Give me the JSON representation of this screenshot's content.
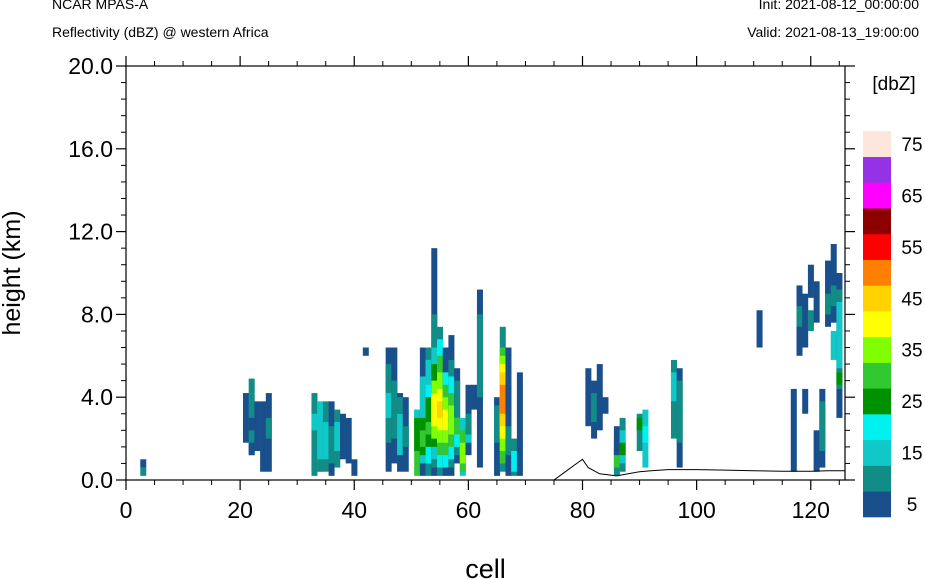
{
  "header": {
    "model": "NCAR MPAS-A",
    "field": "Reflectivity (dBZ) @ western Africa",
    "init": "Init: 2021-08-12_00:00:00",
    "valid": "Valid: 2021-08-13_19:00:00"
  },
  "chart_data": {
    "type": "heatmap",
    "title": "Reflectivity (dBZ) @ western Africa",
    "xlabel": "cell",
    "ylabel": "height (km)",
    "xlim": [
      0,
      126
    ],
    "ylim": [
      0,
      20
    ],
    "xticks": [
      0,
      20,
      40,
      60,
      80,
      100,
      120
    ],
    "yticks": [
      "0.0",
      "4.0",
      "8.0",
      "12.0",
      "16.0",
      "20.0"
    ],
    "colorbar": {
      "unit": "[dbZ]",
      "levels": [
        5,
        10,
        15,
        20,
        25,
        30,
        35,
        40,
        45,
        50,
        55,
        60,
        65,
        70,
        75
      ],
      "labels": [
        "5",
        "15",
        "25",
        "35",
        "45",
        "55",
        "65",
        "75"
      ],
      "colors": [
        "#19508c",
        "#128c86",
        "#10c8c8",
        "#00f0f0",
        "#009100",
        "#32c832",
        "#80ff00",
        "#ffff00",
        "#ffd200",
        "#ff8000",
        "#ff0000",
        "#8c0000",
        "#ff00ff",
        "#9632e6",
        "#ffe6dc"
      ]
    },
    "terrain": [
      [
        0,
        0
      ],
      [
        75,
        0
      ],
      [
        77,
        0.4
      ],
      [
        79,
        0.8
      ],
      [
        80,
        1.0
      ],
      [
        81,
        0.6
      ],
      [
        83,
        0.3
      ],
      [
        86,
        0.2
      ],
      [
        88,
        0.3
      ],
      [
        90,
        0.4
      ],
      [
        92,
        0.45
      ],
      [
        95,
        0.5
      ],
      [
        100,
        0.5
      ],
      [
        105,
        0.48
      ],
      [
        110,
        0.45
      ],
      [
        115,
        0.42
      ],
      [
        120,
        0.42
      ],
      [
        123,
        0.45
      ],
      [
        126,
        0.45
      ]
    ],
    "columns": [
      {
        "x": 3,
        "cells": [
          [
            0.2,
            0.6,
            1
          ],
          [
            0.6,
            1.0,
            0
          ]
        ]
      },
      {
        "x": 21,
        "cells": [
          [
            1.8,
            4.2,
            0
          ]
        ]
      },
      {
        "x": 22,
        "cells": [
          [
            1.2,
            4.2,
            1
          ],
          [
            4.2,
            4.9,
            1
          ],
          [
            1.2,
            1.8,
            0
          ],
          [
            2.4,
            3.0,
            0
          ]
        ]
      },
      {
        "x": 23,
        "cells": [
          [
            1.4,
            3.8,
            0
          ]
        ]
      },
      {
        "x": 24,
        "cells": [
          [
            0.4,
            3.8,
            0
          ]
        ]
      },
      {
        "x": 25,
        "cells": [
          [
            0.4,
            4.2,
            0
          ],
          [
            2.0,
            3.0,
            1
          ]
        ]
      },
      {
        "x": 33,
        "cells": [
          [
            0.2,
            4.2,
            1
          ],
          [
            2.4,
            3.2,
            2
          ]
        ]
      },
      {
        "x": 34,
        "cells": [
          [
            0.4,
            3.8,
            2
          ],
          [
            0.4,
            1.0,
            1
          ]
        ]
      },
      {
        "x": 35,
        "cells": [
          [
            0.4,
            3.8,
            1
          ],
          [
            1.0,
            2.8,
            2
          ]
        ]
      },
      {
        "x": 36,
        "cells": [
          [
            0.2,
            3.8,
            0
          ],
          [
            0.8,
            2.6,
            1
          ]
        ]
      },
      {
        "x": 37,
        "cells": [
          [
            0.6,
            3.4,
            1
          ],
          [
            1.4,
            2.8,
            2
          ]
        ]
      },
      {
        "x": 38,
        "cells": [
          [
            1.0,
            3.2,
            0
          ]
        ]
      },
      {
        "x": 39,
        "cells": [
          [
            0.8,
            3.0,
            0
          ]
        ]
      },
      {
        "x": 40,
        "cells": [
          [
            0.2,
            1.0,
            0
          ]
        ]
      },
      {
        "x": 42,
        "cells": [
          [
            6.0,
            6.4,
            0
          ]
        ]
      },
      {
        "x": 46,
        "cells": [
          [
            0.4,
            6.4,
            0
          ],
          [
            1.8,
            5.6,
            1
          ],
          [
            3.0,
            4.2,
            2
          ]
        ]
      },
      {
        "x": 47,
        "cells": [
          [
            0.8,
            6.4,
            0
          ],
          [
            2.0,
            4.8,
            1
          ]
        ]
      },
      {
        "x": 48,
        "cells": [
          [
            0.4,
            4.2,
            0
          ],
          [
            1.2,
            3.2,
            2
          ],
          [
            3.2,
            4.0,
            1
          ]
        ]
      },
      {
        "x": 49,
        "cells": [
          [
            0.4,
            4.0,
            0
          ],
          [
            1.6,
            2.6,
            1
          ]
        ]
      },
      {
        "x": 51,
        "cells": [
          [
            0.2,
            3.4,
            5
          ],
          [
            1.4,
            3.0,
            4
          ],
          [
            3.0,
            3.4,
            2
          ]
        ]
      },
      {
        "x": 52,
        "cells": [
          [
            0.2,
            6.4,
            0
          ],
          [
            0.8,
            5.0,
            2
          ],
          [
            1.2,
            3.0,
            4
          ],
          [
            1.6,
            2.4,
            5
          ]
        ]
      },
      {
        "x": 53,
        "cells": [
          [
            0.2,
            6.4,
            1
          ],
          [
            0.8,
            5.8,
            3
          ],
          [
            1.6,
            4.0,
            4
          ],
          [
            2.2,
            2.8,
            5
          ],
          [
            4.6,
            5.8,
            2
          ]
        ]
      },
      {
        "x": 54,
        "cells": [
          [
            0.2,
            11.2,
            0
          ],
          [
            0.6,
            8.0,
            1
          ],
          [
            1.0,
            6.4,
            2
          ],
          [
            1.6,
            5.6,
            4
          ],
          [
            2.0,
            4.8,
            6
          ],
          [
            2.6,
            4.2,
            7
          ]
        ]
      },
      {
        "x": 55,
        "cells": [
          [
            0.2,
            7.4,
            1
          ],
          [
            0.6,
            6.8,
            3
          ],
          [
            1.2,
            6.0,
            5
          ],
          [
            1.8,
            5.2,
            6
          ],
          [
            2.4,
            4.4,
            7
          ],
          [
            3.0,
            3.8,
            8
          ]
        ]
      },
      {
        "x": 56,
        "cells": [
          [
            0.2,
            6.4,
            0
          ],
          [
            0.6,
            5.2,
            3
          ],
          [
            1.2,
            4.6,
            5
          ],
          [
            1.8,
            4.0,
            6
          ],
          [
            2.4,
            3.4,
            7
          ]
        ]
      },
      {
        "x": 57,
        "cells": [
          [
            0.2,
            7.0,
            0
          ],
          [
            0.6,
            5.8,
            1
          ],
          [
            1.0,
            5.0,
            3
          ],
          [
            1.6,
            4.2,
            5
          ],
          [
            2.2,
            3.6,
            6
          ]
        ]
      },
      {
        "x": 58,
        "cells": [
          [
            0.8,
            5.4,
            0
          ],
          [
            1.2,
            4.8,
            1
          ],
          [
            1.6,
            3.0,
            3
          ],
          [
            2.2,
            3.0,
            5
          ]
        ]
      },
      {
        "x": 59,
        "cells": [
          [
            0.2,
            3.0,
            2
          ],
          [
            0.4,
            2.4,
            5
          ],
          [
            0.8,
            1.8,
            6
          ]
        ]
      },
      {
        "x": 60,
        "cells": [
          [
            1.2,
            4.6,
            0
          ],
          [
            2.0,
            3.2,
            1
          ],
          [
            1.8,
            2.2,
            2
          ]
        ]
      },
      {
        "x": 61,
        "cells": [
          [
            3.4,
            4.6,
            0
          ]
        ]
      },
      {
        "x": 62,
        "cells": [
          [
            0.6,
            9.2,
            0
          ],
          [
            4.0,
            8.0,
            1
          ]
        ]
      },
      {
        "x": 65,
        "cells": [
          [
            0.2,
            4.0,
            0
          ],
          [
            1.8,
            3.6,
            1
          ]
        ]
      },
      {
        "x": 66,
        "cells": [
          [
            0.4,
            7.4,
            1
          ],
          [
            0.8,
            6.4,
            5
          ],
          [
            1.4,
            6.0,
            6
          ],
          [
            2.0,
            5.6,
            7
          ],
          [
            2.6,
            5.2,
            8
          ],
          [
            3.2,
            4.6,
            9
          ]
        ]
      },
      {
        "x": 67,
        "cells": [
          [
            0.2,
            6.4,
            0
          ],
          [
            1.2,
            2.6,
            1
          ]
        ]
      },
      {
        "x": 68,
        "cells": [
          [
            0.2,
            2.0,
            1
          ],
          [
            0.4,
            1.4,
            3
          ]
        ]
      },
      {
        "x": 69,
        "cells": [
          [
            0.2,
            5.2,
            0
          ]
        ]
      },
      {
        "x": 81,
        "cells": [
          [
            2.6,
            5.4,
            0
          ]
        ]
      },
      {
        "x": 82,
        "cells": [
          [
            2.0,
            4.8,
            0
          ],
          [
            2.8,
            4.2,
            1
          ]
        ]
      },
      {
        "x": 83,
        "cells": [
          [
            2.4,
            5.6,
            0
          ]
        ]
      },
      {
        "x": 84,
        "cells": [
          [
            3.2,
            4.0,
            0
          ]
        ]
      },
      {
        "x": 86,
        "cells": [
          [
            0.2,
            2.0,
            1
          ],
          [
            0.6,
            1.4,
            5
          ],
          [
            1.2,
            2.6,
            0
          ]
        ]
      },
      {
        "x": 87,
        "cells": [
          [
            0.4,
            3.0,
            1
          ],
          [
            0.8,
            2.4,
            2
          ],
          [
            1.2,
            1.8,
            4
          ]
        ]
      },
      {
        "x": 90,
        "cells": [
          [
            1.4,
            3.2,
            1
          ],
          [
            2.4,
            3.0,
            4
          ]
        ]
      },
      {
        "x": 91,
        "cells": [
          [
            0.6,
            3.4,
            2
          ],
          [
            1.8,
            2.6,
            3
          ]
        ]
      },
      {
        "x": 96,
        "cells": [
          [
            2.0,
            5.8,
            1
          ],
          [
            3.8,
            5.2,
            2
          ]
        ]
      },
      {
        "x": 97,
        "cells": [
          [
            0.6,
            5.4,
            0
          ],
          [
            1.8,
            4.8,
            1
          ]
        ]
      },
      {
        "x": 111,
        "cells": [
          [
            6.4,
            8.2,
            0
          ]
        ]
      },
      {
        "x": 117,
        "cells": [
          [
            0.4,
            4.4,
            0
          ]
        ]
      },
      {
        "x": 118,
        "cells": [
          [
            6.0,
            9.4,
            0
          ],
          [
            7.4,
            8.4,
            1
          ]
        ]
      },
      {
        "x": 119,
        "cells": [
          [
            6.4,
            9.0,
            0
          ],
          [
            3.2,
            4.4,
            0
          ]
        ]
      },
      {
        "x": 120,
        "cells": [
          [
            8.8,
            10.4,
            0
          ],
          [
            7.2,
            8.2,
            1
          ]
        ]
      },
      {
        "x": 121,
        "cells": [
          [
            0.4,
            2.4,
            0
          ],
          [
            7.6,
            9.6,
            0
          ]
        ]
      },
      {
        "x": 122,
        "cells": [
          [
            0.6,
            4.4,
            0
          ],
          [
            1.4,
            3.8,
            1
          ]
        ]
      },
      {
        "x": 123,
        "cells": [
          [
            7.4,
            10.6,
            0
          ],
          [
            8.0,
            9.0,
            1
          ]
        ]
      },
      {
        "x": 124,
        "cells": [
          [
            7.6,
            11.4,
            0
          ],
          [
            8.4,
            9.4,
            1
          ],
          [
            5.8,
            7.2,
            2
          ]
        ]
      },
      {
        "x": 125,
        "cells": [
          [
            3.0,
            10.0,
            0
          ],
          [
            4.4,
            9.2,
            1
          ],
          [
            5.4,
            8.6,
            2
          ],
          [
            4.6,
            5.2,
            4
          ]
        ]
      }
    ]
  }
}
